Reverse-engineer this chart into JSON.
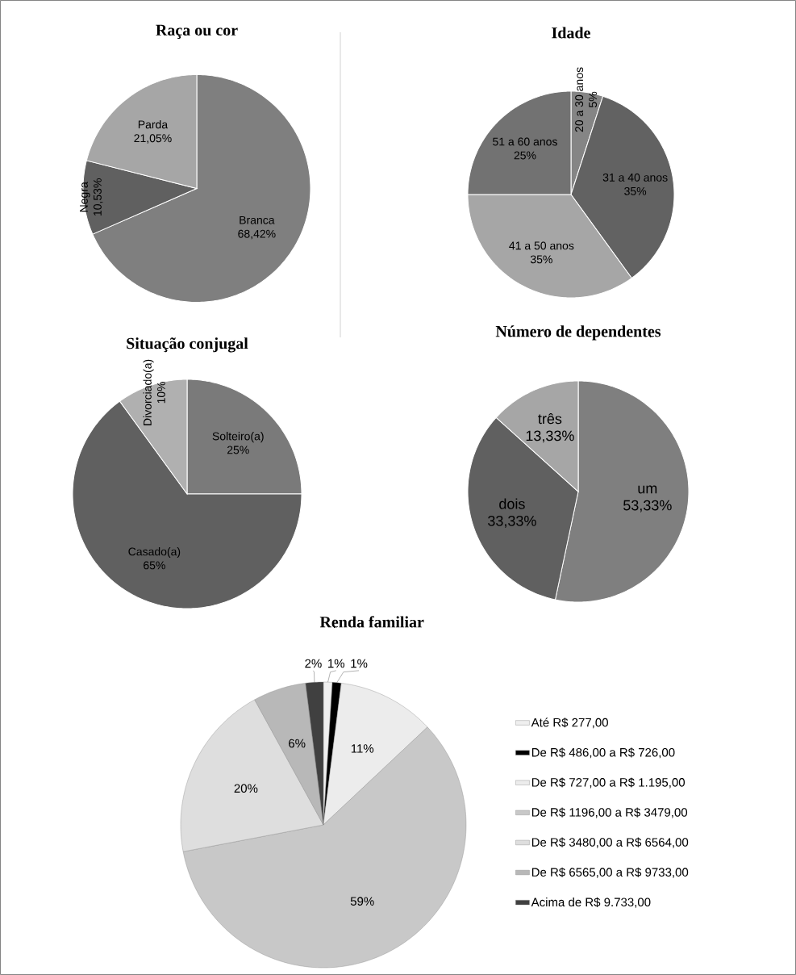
{
  "chart_data": [
    {
      "type": "pie",
      "title": "Raça ou cor",
      "categories": [
        "Branca",
        "Negra",
        "Parda"
      ],
      "values": [
        68.42,
        10.53,
        21.05
      ],
      "colors": [
        "#7f7f7f",
        "#606060",
        "#a6a6a6"
      ],
      "value_labels": [
        "68,42%",
        "10,53%",
        "21,05%"
      ]
    },
    {
      "type": "pie",
      "title": "Idade",
      "categories": [
        "20 a 30 anos",
        "31 a 40 anos",
        "41 a 50 anos",
        "51 a 60 anos"
      ],
      "values": [
        5,
        35,
        35,
        25
      ],
      "colors": [
        "#858585",
        "#626262",
        "#a6a6a6",
        "#727272"
      ],
      "value_labels": [
        "5%",
        "35%",
        "35%",
        "25%"
      ]
    },
    {
      "type": "pie",
      "title": "Situação conjugal",
      "categories": [
        "Solteiro(a)",
        "Casado(a)",
        "Divorciado(a)"
      ],
      "values": [
        25,
        65,
        10
      ],
      "colors": [
        "#7a7a7a",
        "#606060",
        "#b0b0b0"
      ],
      "value_labels": [
        "25%",
        "65%",
        "10%"
      ]
    },
    {
      "type": "pie",
      "title": "Número de dependentes",
      "categories": [
        "um",
        "dois",
        "três"
      ],
      "values": [
        53.33,
        33.33,
        13.33
      ],
      "colors": [
        "#7f7f7f",
        "#606060",
        "#a6a6a6"
      ],
      "value_labels": [
        "53,33%",
        "33,33%",
        "13,33%"
      ]
    },
    {
      "type": "pie",
      "title": "Renda familiar",
      "categories": [
        "Até R$ 277,00",
        "De R$ 486,00 a R$ 726,00",
        "De R$ 727,00 a R$ 1.195,00",
        "De R$ 1196,00 a R$ 3479,00",
        "De R$ 3480,00 a R$ 6564,00",
        "De R$ 6565,00 a R$ 9733,00",
        "Acima de R$ 9.733,00"
      ],
      "values": [
        1,
        1,
        11,
        59,
        20,
        6,
        2
      ],
      "colors": [
        "#efefef",
        "#000000",
        "#ececec",
        "#c8c8c8",
        "#dedede",
        "#b8b8b8",
        "#404040"
      ],
      "value_labels": [
        "1%",
        "1%",
        "11%",
        "59%",
        "20%",
        "6%",
        "2%"
      ],
      "legend": "right"
    }
  ]
}
